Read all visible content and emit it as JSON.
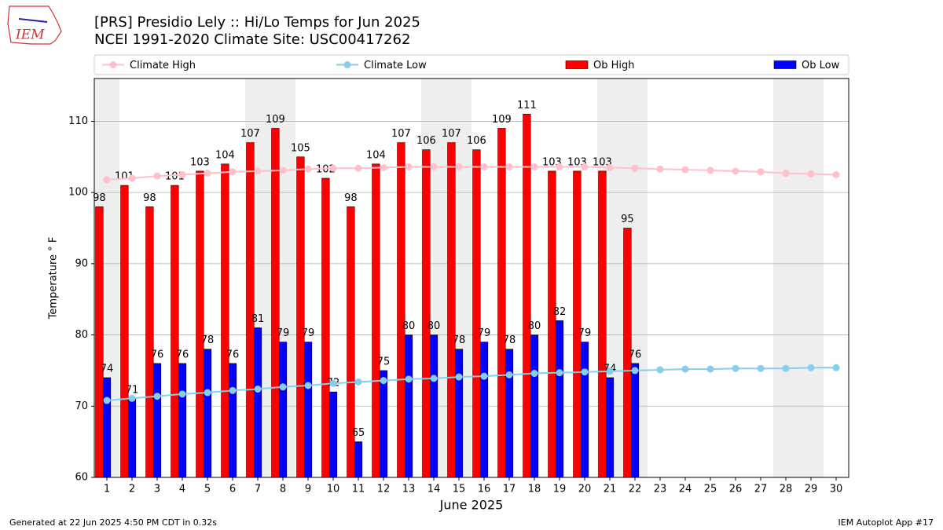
{
  "logo_text": "IEM",
  "chart_data": {
    "type": "bar",
    "title": "[PRS] Presidio Lely :: Hi/Lo Temps for Jun 2025",
    "subtitle": "NCEI 1991-2020 Climate Site: USC00417262",
    "xlabel": "June 2025",
    "ylabel": "Temperature ° F",
    "x": [
      1,
      2,
      3,
      4,
      5,
      6,
      7,
      8,
      9,
      10,
      11,
      12,
      13,
      14,
      15,
      16,
      17,
      18,
      19,
      20,
      21,
      22,
      23,
      24,
      25,
      26,
      27,
      28,
      29,
      30
    ],
    "xlim": [
      0.5,
      30.5
    ],
    "xticks": [
      1,
      2,
      3,
      4,
      5,
      6,
      7,
      8,
      9,
      10,
      11,
      12,
      13,
      14,
      15,
      16,
      17,
      18,
      19,
      20,
      21,
      22,
      23,
      24,
      25,
      26,
      27,
      28,
      29,
      30
    ],
    "ylim": [
      60,
      116
    ],
    "yticks": [
      60,
      70,
      80,
      90,
      100,
      110
    ],
    "grid": true,
    "weekends": [
      1,
      7,
      8,
      14,
      15,
      21,
      22,
      28,
      29
    ],
    "series": [
      {
        "name": "Climate High",
        "kind": "line",
        "color": "#ffc0cb",
        "values": [
          101.8,
          102.0,
          102.3,
          102.5,
          102.7,
          102.9,
          103.0,
          103.1,
          103.3,
          103.4,
          103.4,
          103.5,
          103.6,
          103.6,
          103.6,
          103.6,
          103.6,
          103.6,
          103.6,
          103.6,
          103.5,
          103.4,
          103.3,
          103.2,
          103.1,
          103.0,
          102.9,
          102.7,
          102.6,
          102.5
        ]
      },
      {
        "name": "Climate Low",
        "kind": "line",
        "color": "#87ceeb",
        "values": [
          70.8,
          71.1,
          71.4,
          71.7,
          71.9,
          72.2,
          72.4,
          72.7,
          72.9,
          73.2,
          73.4,
          73.6,
          73.8,
          73.9,
          74.1,
          74.2,
          74.4,
          74.6,
          74.7,
          74.8,
          74.9,
          75.0,
          75.1,
          75.2,
          75.2,
          75.3,
          75.3,
          75.3,
          75.4,
          75.4
        ]
      },
      {
        "name": "Ob High",
        "kind": "bar",
        "color": "#ff0000",
        "values": [
          98,
          101,
          98,
          101,
          103,
          104,
          107,
          109,
          105,
          102,
          98,
          104,
          107,
          106,
          107,
          106,
          109,
          111,
          103,
          103,
          103,
          95,
          null,
          null,
          null,
          null,
          null,
          null,
          null,
          null
        ]
      },
      {
        "name": "Ob Low",
        "kind": "bar",
        "color": "#0000ff",
        "values": [
          74,
          71,
          76,
          76,
          78,
          76,
          81,
          79,
          79,
          72,
          65,
          75,
          80,
          80,
          78,
          79,
          78,
          80,
          82,
          79,
          74,
          76,
          null,
          null,
          null,
          null,
          null,
          null,
          null,
          null
        ]
      }
    ],
    "footer_left": "Generated at 22 Jun 2025 4:50 PM CDT in 0.32s",
    "footer_right": "IEM Autoplot App #17"
  }
}
